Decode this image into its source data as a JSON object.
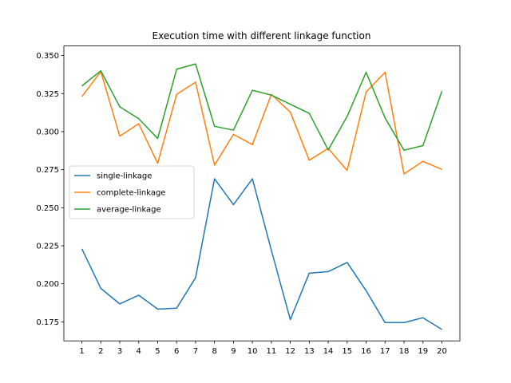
{
  "chart_data": {
    "type": "line",
    "title": "Execution time with different linkage function",
    "xlabel": "",
    "ylabel": "",
    "x": [
      1,
      2,
      3,
      4,
      5,
      6,
      7,
      8,
      9,
      10,
      11,
      12,
      13,
      14,
      15,
      16,
      17,
      18,
      19,
      20
    ],
    "xticks": [
      "1",
      "2",
      "3",
      "4",
      "5",
      "6",
      "7",
      "8",
      "9",
      "10",
      "11",
      "12",
      "13",
      "14",
      "15",
      "16",
      "17",
      "18",
      "19",
      "20"
    ],
    "ylim": [
      0.1625,
      0.3563
    ],
    "yticks": [
      0.175,
      0.2,
      0.225,
      0.25,
      0.275,
      0.3,
      0.325,
      0.35
    ],
    "ytick_labels": [
      "0.175",
      "0.200",
      "0.225",
      "0.250",
      "0.275",
      "0.300",
      "0.325",
      "0.350"
    ],
    "grid": false,
    "legend_position": "center-left",
    "series": [
      {
        "name": "single-linkage",
        "color": "#1f77b4",
        "values": [
          0.223,
          0.197,
          0.1868,
          0.1925,
          0.1834,
          0.184,
          0.204,
          0.269,
          0.252,
          0.269,
          0.222,
          0.1765,
          0.207,
          0.208,
          0.214,
          0.1955,
          0.1745,
          0.1745,
          0.1777,
          0.17
        ]
      },
      {
        "name": "complete-linkage",
        "color": "#ff7f0e",
        "values": [
          0.323,
          0.3395,
          0.297,
          0.3052,
          0.2792,
          0.3245,
          0.3325,
          0.278,
          0.2982,
          0.2915,
          0.3245,
          0.3128,
          0.2812,
          0.289,
          0.2745,
          0.326,
          0.339,
          0.2722,
          0.2805,
          0.2752
        ]
      },
      {
        "name": "average-linkage",
        "color": "#2ca02c",
        "values": [
          0.33,
          0.34,
          0.3163,
          0.3085,
          0.2955,
          0.341,
          0.3445,
          0.3035,
          0.301,
          0.3272,
          0.324,
          0.318,
          0.312,
          0.288,
          0.31,
          0.339,
          0.309,
          0.2878,
          0.2908,
          0.3265
        ]
      }
    ]
  }
}
